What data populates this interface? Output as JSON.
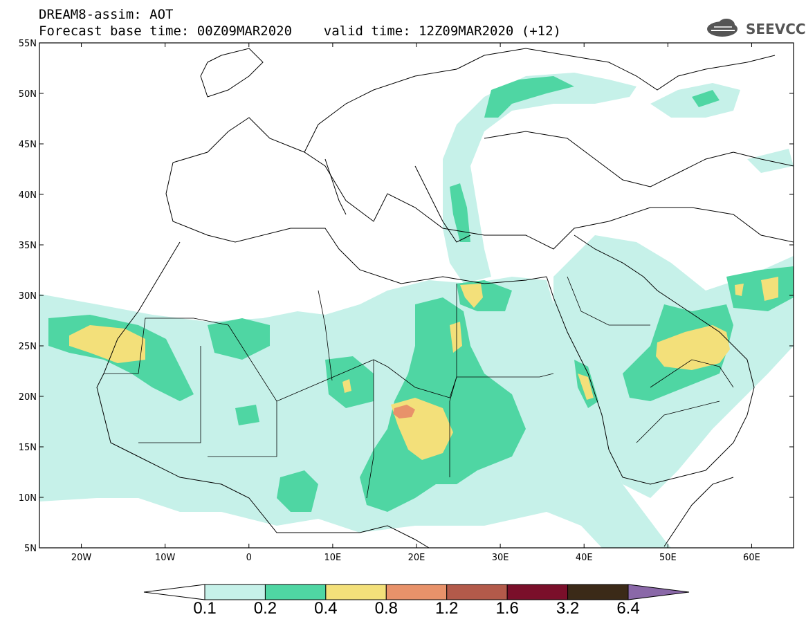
{
  "header": {
    "title": "DREAM8-assim: AOT",
    "forecast_line": "Forecast base time: 00Z09MAR2020    valid time: 12Z09MAR2020 (+12)",
    "logo_text": "SEEVCCC",
    "logo_icon": "cloud-icon"
  },
  "map": {
    "variable": "AOT",
    "lon_range": [
      -25,
      65
    ],
    "lat_range": [
      5,
      55
    ],
    "lat_labels": [
      "55N",
      "50N",
      "45N",
      "40N",
      "35N",
      "30N",
      "25N",
      "20N",
      "15N",
      "10N",
      "5N"
    ],
    "lat_values": [
      55,
      50,
      45,
      40,
      35,
      30,
      25,
      20,
      15,
      10,
      5
    ],
    "lon_labels": [
      "20W",
      "10W",
      "0",
      "10E",
      "20E",
      "30E",
      "40E",
      "50E",
      "60E"
    ],
    "lon_values": [
      -20,
      -10,
      0,
      10,
      20,
      30,
      40,
      50,
      60
    ]
  },
  "colorbar": {
    "levels": [
      "0.1",
      "0.2",
      "0.4",
      "0.8",
      "1.2",
      "1.6",
      "3.2",
      "6.4"
    ],
    "colors": [
      "#c6f1e9",
      "#4fd6a3",
      "#f3e07a",
      "#e8926a",
      "#b35a4a",
      "#7a0f2a",
      "#3b2a18",
      "#8a68a8"
    ],
    "below_color": "#ffffff"
  }
}
